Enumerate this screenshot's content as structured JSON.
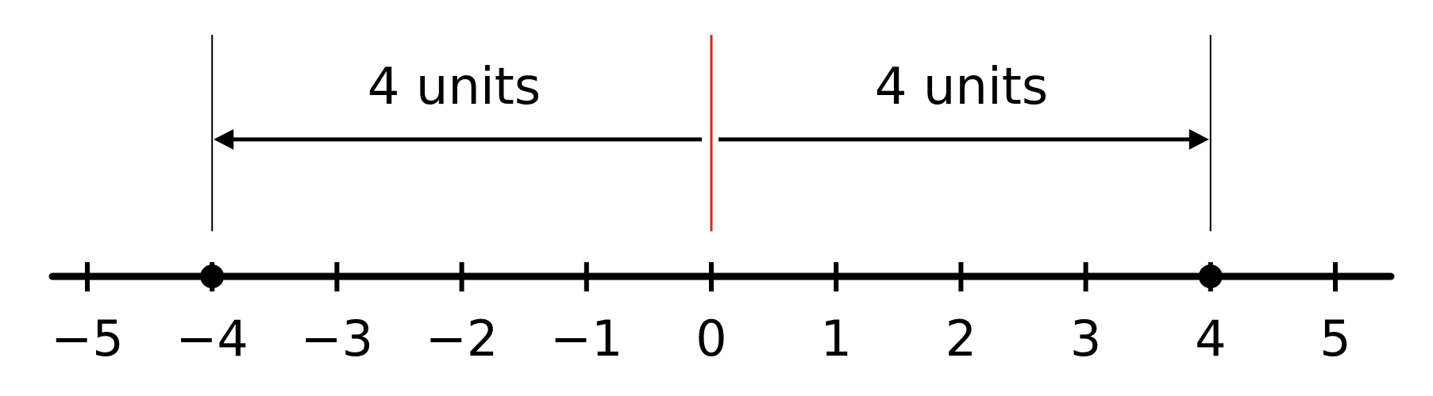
{
  "number_line": {
    "min": -5,
    "max": 5,
    "tick_labels": [
      "−5",
      "−4",
      "−3",
      "−2",
      "−1",
      "0",
      "1",
      "2",
      "3",
      "4",
      "5"
    ],
    "points": [
      -4,
      4
    ],
    "center": 0
  },
  "annotations": {
    "left_label": "4 units",
    "right_label": "4 units"
  },
  "colors": {
    "line": "#000000",
    "center_marker": "#d9260f"
  }
}
